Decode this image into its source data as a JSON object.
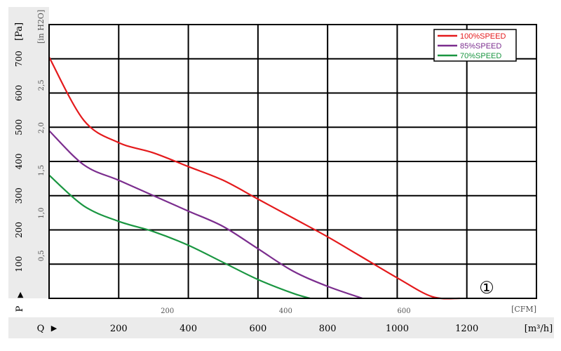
{
  "chart_data": {
    "type": "line",
    "units": {
      "pressure_pa": "[Pa]",
      "pressure_inh2o": "[in H2O]",
      "flow_cfm": "[CFM]",
      "flow_m3h": "[m³/h]"
    },
    "axis_letters": {
      "pressure": "P",
      "flow": "Q"
    },
    "arrow_glyph": "▶",
    "marker": "①",
    "x_axis": {
      "label": "[m³/h]",
      "range": [
        0,
        1400
      ],
      "ticks": [
        200,
        400,
        600,
        800,
        1000,
        1200
      ]
    },
    "x_axis_cfm": {
      "label": "[CFM]",
      "ticks": [
        200,
        400,
        600
      ]
    },
    "y_axis": {
      "label": "[Pa]",
      "range": [
        0,
        800
      ],
      "ticks": [
        100,
        200,
        300,
        400,
        500,
        600,
        700
      ]
    },
    "y_axis_inh2o": {
      "label": "[in H2O]",
      "ticks": [
        "0,5",
        "1,0",
        "1,5",
        "2,0",
        "2,5"
      ]
    },
    "grid": true,
    "legend_position": "top-right",
    "series": [
      {
        "name": "100%SPEED",
        "color": "#e41a1c",
        "points": [
          [
            0,
            705
          ],
          [
            100,
            520
          ],
          [
            200,
            455
          ],
          [
            300,
            425
          ],
          [
            400,
            385
          ],
          [
            500,
            345
          ],
          [
            600,
            290
          ],
          [
            700,
            235
          ],
          [
            800,
            180
          ],
          [
            900,
            120
          ],
          [
            1000,
            60
          ],
          [
            1100,
            5
          ],
          [
            1180,
            0
          ]
        ]
      },
      {
        "name": "85%SPEED",
        "color": "#7b2d8e",
        "points": [
          [
            0,
            490
          ],
          [
            100,
            390
          ],
          [
            200,
            345
          ],
          [
            300,
            300
          ],
          [
            400,
            255
          ],
          [
            500,
            210
          ],
          [
            600,
            145
          ],
          [
            700,
            80
          ],
          [
            800,
            35
          ],
          [
            900,
            0
          ]
        ]
      },
      {
        "name": "70%SPEED",
        "color": "#1a9641",
        "points": [
          [
            0,
            360
          ],
          [
            100,
            270
          ],
          [
            200,
            225
          ],
          [
            300,
            195
          ],
          [
            400,
            155
          ],
          [
            500,
            105
          ],
          [
            600,
            55
          ],
          [
            700,
            15
          ],
          [
            750,
            0
          ]
        ]
      }
    ]
  }
}
